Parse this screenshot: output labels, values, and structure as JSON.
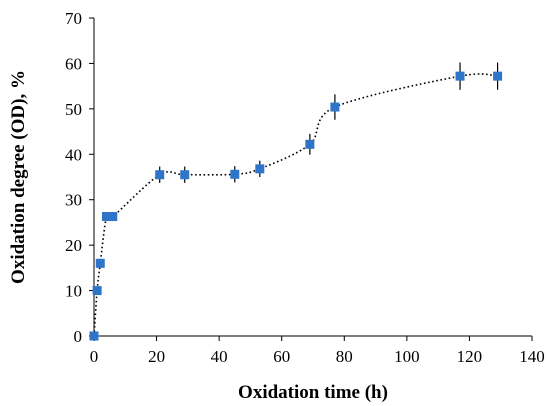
{
  "chart_data": {
    "type": "scatter",
    "title": "",
    "xlabel": "Oxidation time (h)",
    "ylabel": "Oxidation degree (OD), %",
    "xlim": [
      0,
      140
    ],
    "ylim": [
      0,
      70
    ],
    "xticks": [
      0,
      20,
      40,
      60,
      80,
      100,
      120,
      140
    ],
    "yticks": [
      0,
      10,
      20,
      30,
      40,
      50,
      60,
      70
    ],
    "grid": false,
    "legend": "none",
    "trendline": "dotted smooth curve through points",
    "marker_color": "#2e75c8",
    "series": [
      {
        "x": [
          0,
          1,
          2,
          4,
          6,
          21,
          29,
          45,
          53,
          69,
          77,
          117,
          129
        ],
        "y": [
          0,
          10,
          16,
          26.3,
          26.3,
          35.5,
          35.5,
          35.6,
          36.8,
          42.2,
          50.4,
          57.2,
          57.2
        ],
        "error": [
          0,
          0.5,
          1,
          1,
          1,
          1.8,
          1.8,
          1.8,
          1.8,
          2.3,
          2.8,
          3,
          3
        ]
      }
    ]
  }
}
